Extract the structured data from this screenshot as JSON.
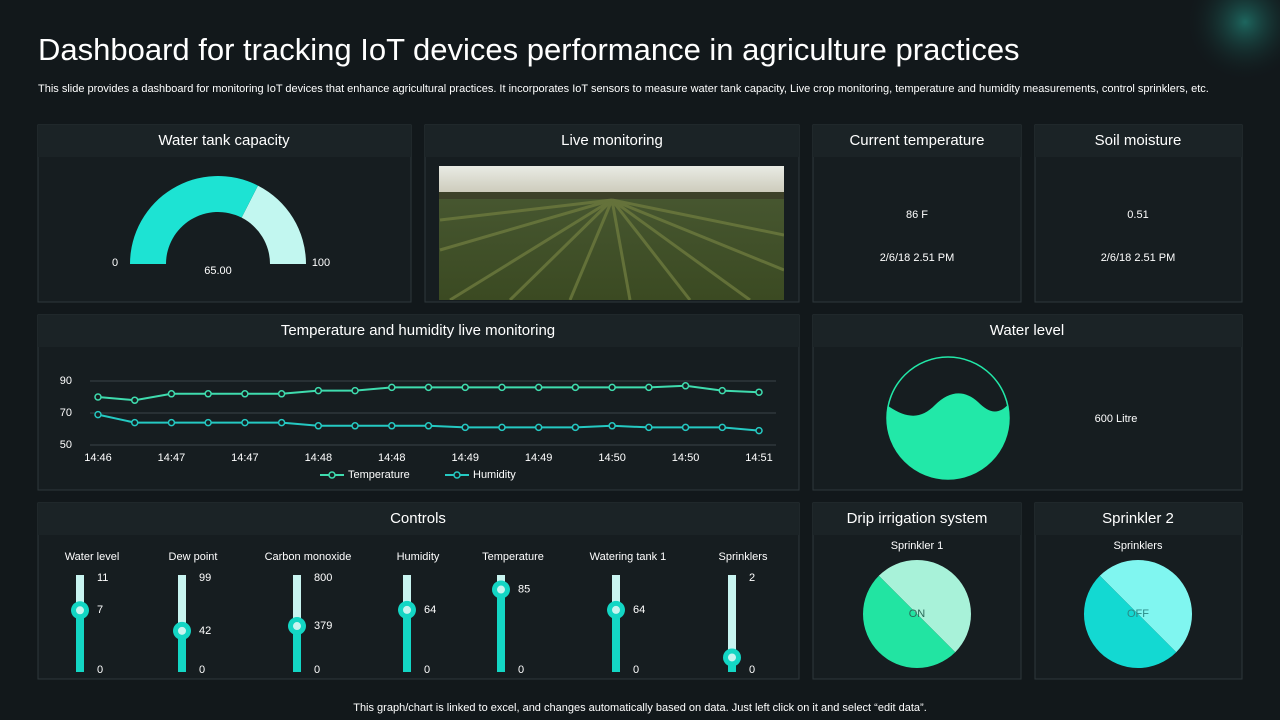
{
  "header": {
    "title": "Dashboard for tracking IoT devices performance in agriculture practices",
    "subtitle": "This slide provides a dashboard for monitoring IoT devices that enhance agricultural practices. It incorporates IoT sensors to measure water tank capacity, Live  crop monitoring, temperature and humidity measurements, control sprinklers, etc."
  },
  "water_tank": {
    "title": "Water tank capacity",
    "type": "gauge",
    "value": 65,
    "value_label": "65.00",
    "range": [
      0,
      100
    ],
    "ticks": [
      0,
      100
    ],
    "color": "#1de3d3",
    "track_color": "#c2f7f0"
  },
  "live_monitoring": {
    "title": "Live monitoring"
  },
  "current_temperature": {
    "title": "Current temperature",
    "value": "86 F",
    "timestamp": "2/6/18 2.51 PM"
  },
  "soil_moisture": {
    "title": "Soil moisture",
    "value": "0.51",
    "timestamp": "2/6/18 2.51 PM"
  },
  "chart_data": {
    "type": "line",
    "title": "Temperature and humidity live monitoring",
    "categories": [
      "14:46",
      null,
      "14:47",
      null,
      "14:47",
      null,
      "14:48",
      null,
      "14:48",
      null,
      "14:49",
      null,
      "14:49",
      null,
      "14:50",
      null,
      "14:50",
      null,
      "14:51"
    ],
    "series": [
      {
        "name": "Temperature",
        "color": "#3fdcae",
        "values": [
          80,
          78,
          82,
          82,
          82,
          82,
          84,
          84,
          86,
          86,
          86,
          86,
          86,
          86,
          86,
          86,
          87,
          84,
          83
        ]
      },
      {
        "name": "Humidity",
        "color": "#25c9c2",
        "values": [
          69,
          64,
          64,
          64,
          64,
          64,
          62,
          62,
          62,
          62,
          61,
          61,
          61,
          61,
          62,
          61,
          61,
          61,
          59
        ]
      }
    ],
    "ylim": [
      50,
      90
    ],
    "yticks": [
      50,
      70,
      90
    ],
    "grid": true,
    "legend": "bottom"
  },
  "water_level": {
    "title": "Water level",
    "value": "600 Litre"
  },
  "controls": {
    "title": "Controls",
    "sliders": [
      {
        "name": "Water level",
        "range": [
          0,
          11
        ],
        "ticks": [
          0,
          11
        ],
        "value": 7,
        "show_value": true
      },
      {
        "name": "Dew point",
        "range": [
          0,
          99
        ],
        "ticks": [
          0,
          99
        ],
        "value": 42,
        "show_value": true
      },
      {
        "name": "Carbon monoxide",
        "range": [
          0,
          800
        ],
        "ticks": [
          0,
          800
        ],
        "value": 379,
        "show_value": true
      },
      {
        "name": "Humidity",
        "range": [
          0,
          100
        ],
        "ticks": [
          0
        ],
        "value": 64,
        "show_value": true
      },
      {
        "name": "Temperature",
        "range": [
          0,
          100
        ],
        "ticks": [
          0
        ],
        "value": 85,
        "show_value": true
      },
      {
        "name": "Watering tank 1",
        "range": [
          0,
          100
        ],
        "ticks": [
          0
        ],
        "value": 64,
        "show_value": true
      },
      {
        "name": "Sprinklers",
        "range": [
          0,
          2
        ],
        "ticks": [
          0,
          2
        ],
        "value": 0.3,
        "show_value": false
      }
    ]
  },
  "drip_irrigation": {
    "title": "Drip irrigation system",
    "label": "Sprinkler 1",
    "state": "ON"
  },
  "sprinkler_2": {
    "title": "Sprinkler 2",
    "label": "Sprinklers",
    "state": "OFF"
  },
  "footer": "This graph/chart is linked to excel, and changes automatically based on data. Just left click on it and select “edit data”."
}
